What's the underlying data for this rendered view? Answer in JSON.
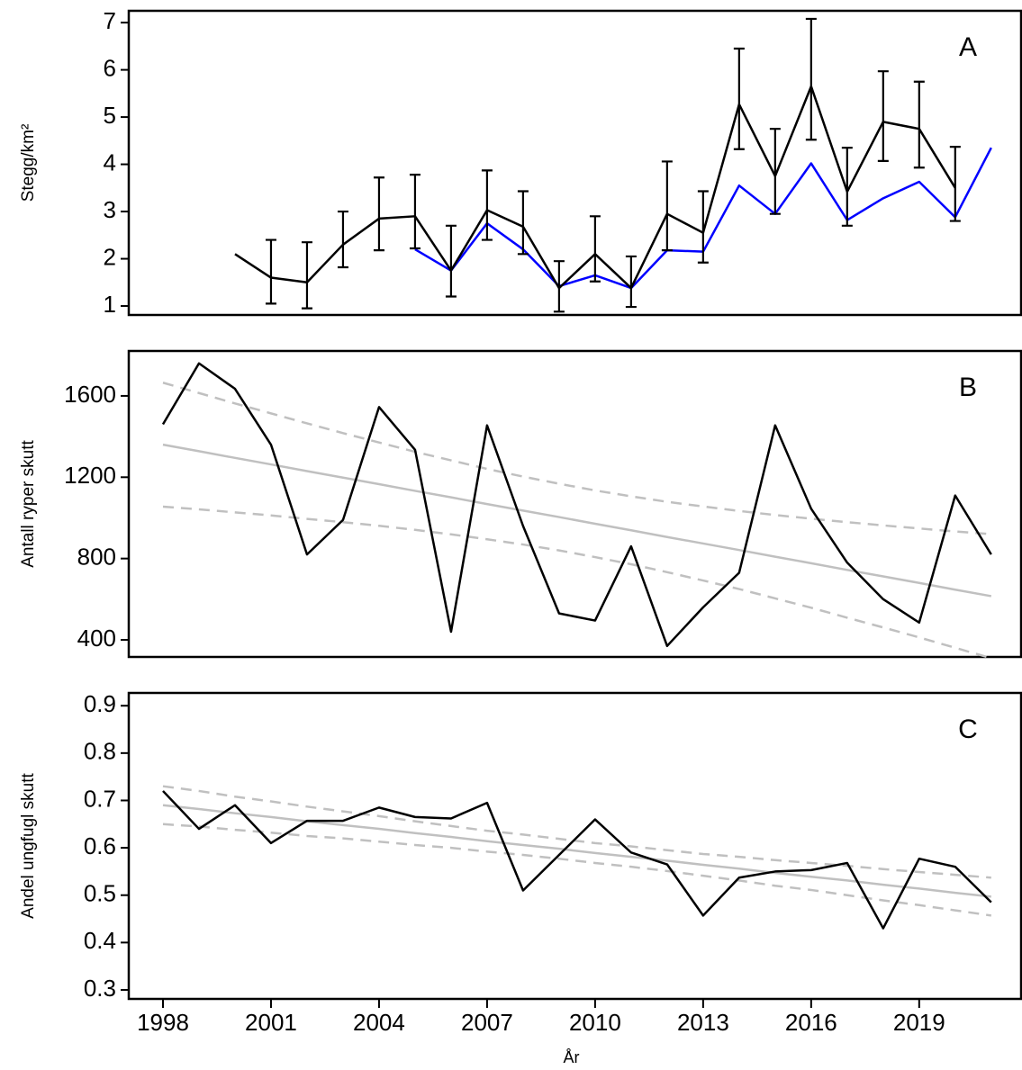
{
  "chart_data": [
    {
      "type": "line",
      "label": "A",
      "ylabel": "Stegg/km²",
      "x": [
        1998,
        1999,
        2000,
        2001,
        2002,
        2003,
        2004,
        2005,
        2006,
        2007,
        2008,
        2009,
        2010,
        2011,
        2012,
        2013,
        2014,
        2015,
        2016,
        2017,
        2018,
        2019,
        2020,
        2021
      ],
      "xlim": [
        1997.05,
        2021.83
      ],
      "ylim": [
        0.81,
        7.25
      ],
      "yticks": [
        1,
        2,
        3,
        4,
        5,
        6,
        7
      ],
      "series": [
        {
          "color": "#0000ff",
          "values": [
            null,
            null,
            null,
            null,
            null,
            null,
            null,
            2.2,
            1.75,
            2.75,
            2.2,
            1.42,
            1.65,
            1.38,
            2.18,
            2.15,
            3.55,
            2.95,
            4.02,
            2.82,
            3.28,
            3.63,
            2.88,
            4.35
          ]
        },
        {
          "color": "#000000",
          "values": [
            null,
            null,
            2.1,
            1.6,
            1.5,
            2.3,
            2.85,
            2.9,
            1.75,
            3.03,
            2.68,
            1.38,
            2.1,
            1.38,
            2.95,
            2.55,
            5.27,
            3.75,
            5.65,
            3.42,
            4.9,
            4.75,
            3.5,
            null
          ],
          "lower": [
            null,
            null,
            null,
            1.05,
            0.95,
            1.82,
            2.18,
            2.22,
            1.2,
            2.4,
            2.1,
            0.88,
            1.52,
            0.98,
            2.18,
            1.92,
            4.32,
            2.95,
            4.52,
            2.7,
            4.07,
            3.93,
            2.8,
            null
          ],
          "upper": [
            null,
            null,
            null,
            2.4,
            2.35,
            3.0,
            3.72,
            3.78,
            2.7,
            3.87,
            3.43,
            1.95,
            2.9,
            2.05,
            4.06,
            3.43,
            6.45,
            4.75,
            7.08,
            4.35,
            5.97,
            5.75,
            4.37,
            null
          ]
        }
      ]
    },
    {
      "type": "line",
      "label": "B",
      "ylabel": "Antall ryper skutt",
      "x": [
        1998,
        1999,
        2000,
        2001,
        2002,
        2003,
        2004,
        2005,
        2006,
        2007,
        2008,
        2009,
        2010,
        2011,
        2012,
        2013,
        2014,
        2015,
        2016,
        2017,
        2018,
        2019,
        2020,
        2021
      ],
      "xlim": [
        1997.05,
        2021.83
      ],
      "ylim": [
        316,
        1821
      ],
      "yticks": [
        400,
        800,
        1200,
        1600
      ],
      "series": [
        {
          "color": "#c0c0c0",
          "dashed": true,
          "values": [
            1665,
            1614,
            1563,
            1514,
            1465,
            1417,
            1371,
            1325,
            1283,
            1241,
            1203,
            1168,
            1135,
            1106,
            1079,
            1056,
            1034,
            1014,
            996,
            979,
            963,
            948,
            933,
            920
          ]
        },
        {
          "color": "#c0c0c0",
          "dashed": true,
          "values": [
            1055,
            1042,
            1027,
            1012,
            995,
            979,
            961,
            941,
            919,
            895,
            869,
            840,
            807,
            772,
            733,
            692,
            650,
            604,
            558,
            509,
            461,
            412,
            361,
            310
          ]
        },
        {
          "color": "#c0c0c0",
          "values": [
            1360,
            1328,
            1295,
            1263,
            1230,
            1198,
            1166,
            1133,
            1101,
            1068,
            1036,
            1004,
            971,
            939,
            906,
            874,
            842,
            809,
            777,
            744,
            712,
            680,
            647,
            615
          ]
        },
        {
          "color": "#000000",
          "values": [
            1460,
            1760,
            1635,
            1360,
            820,
            990,
            1545,
            1335,
            440,
            1455,
            960,
            530,
            495,
            860,
            370,
            560,
            730,
            1455,
            1045,
            780,
            600,
            485,
            1110,
            820
          ]
        }
      ]
    },
    {
      "type": "line",
      "label": "C",
      "ylabel": "Andel ungfugl skutt",
      "xlabel": "År",
      "x": [
        1998,
        1999,
        2000,
        2001,
        2002,
        2003,
        2004,
        2005,
        2006,
        2007,
        2008,
        2009,
        2010,
        2011,
        2012,
        2013,
        2014,
        2015,
        2016,
        2017,
        2018,
        2019,
        2020,
        2021
      ],
      "xlim": [
        1997.05,
        2021.83
      ],
      "xticks": [
        1998,
        2001,
        2004,
        2007,
        2010,
        2013,
        2016,
        2019
      ],
      "ylim": [
        0.281,
        0.927
      ],
      "yticks": [
        0.3,
        0.4,
        0.5,
        0.6,
        0.7,
        0.8,
        0.9
      ],
      "series": [
        {
          "color": "#c0c0c0",
          "dashed": true,
          "values": [
            0.73,
            0.72,
            0.708,
            0.698,
            0.687,
            0.677,
            0.667,
            0.656,
            0.646,
            0.636,
            0.628,
            0.619,
            0.61,
            0.603,
            0.595,
            0.587,
            0.581,
            0.574,
            0.568,
            0.562,
            0.555,
            0.549,
            0.543,
            0.537
          ]
        },
        {
          "color": "#c0c0c0",
          "dashed": true,
          "values": [
            0.65,
            0.645,
            0.638,
            0.632,
            0.625,
            0.62,
            0.613,
            0.606,
            0.6,
            0.592,
            0.585,
            0.577,
            0.568,
            0.56,
            0.551,
            0.541,
            0.531,
            0.52,
            0.511,
            0.5,
            0.489,
            0.479,
            0.468,
            0.457
          ]
        },
        {
          "color": "#c0c0c0",
          "values": [
            0.69,
            0.682,
            0.673,
            0.665,
            0.656,
            0.648,
            0.64,
            0.631,
            0.623,
            0.614,
            0.606,
            0.598,
            0.589,
            0.581,
            0.573,
            0.564,
            0.556,
            0.547,
            0.539,
            0.531,
            0.522,
            0.514,
            0.505,
            0.497
          ]
        },
        {
          "color": "#000000",
          "values": [
            0.72,
            0.64,
            0.69,
            0.61,
            0.657,
            0.657,
            0.685,
            0.665,
            0.662,
            0.695,
            0.51,
            0.585,
            0.66,
            0.59,
            0.565,
            0.457,
            0.537,
            0.55,
            0.553,
            0.568,
            0.43,
            0.577,
            0.56,
            0.485
          ]
        }
      ]
    }
  ]
}
